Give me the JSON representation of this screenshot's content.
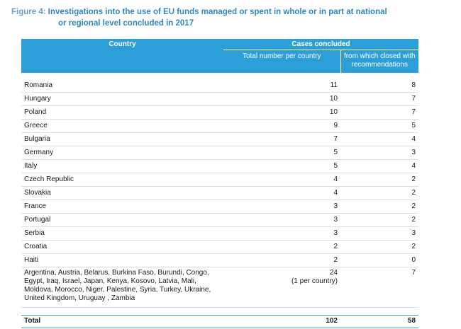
{
  "caption": {
    "label": "Figure 4:",
    "line1": "Investigations into the use of EU funds managed or spent in whole or in part at national",
    "line2": "or regional level concluded in 2017"
  },
  "table": {
    "headers": {
      "country": "Country",
      "cases_concluded": "Cases concluded",
      "total_per_country": "Total number per country",
      "closed_with_recommendations": "from which closed with recommendations"
    },
    "rows": [
      {
        "country": "Romania",
        "total": "11",
        "closed": "8"
      },
      {
        "country": "Hungary",
        "total": "10",
        "closed": "7"
      },
      {
        "country": "Poland",
        "total": "10",
        "closed": "7"
      },
      {
        "country": "Greece",
        "total": "9",
        "closed": "5"
      },
      {
        "country": "Bulgaria",
        "total": "7",
        "closed": "4"
      },
      {
        "country": "Germany",
        "total": "5",
        "closed": "3"
      },
      {
        "country": "Italy",
        "total": "5",
        "closed": "4"
      },
      {
        "country": "Czech Republic",
        "total": "4",
        "closed": "2"
      },
      {
        "country": "Slovakia",
        "total": "4",
        "closed": "2"
      },
      {
        "country": "France",
        "total": "3",
        "closed": "2"
      },
      {
        "country": "Portugal",
        "total": "3",
        "closed": "2"
      },
      {
        "country": "Serbia",
        "total": "3",
        "closed": "3"
      },
      {
        "country": "Croatia",
        "total": "2",
        "closed": "2"
      },
      {
        "country": "Haiti",
        "total": "2",
        "closed": "0"
      }
    ],
    "others": {
      "countries": "Argentina, Austria, Belarus, Burkina Faso, Burundi, Congo, Egypt, Iraq, Israel, Japan, Kenya, Kosovo, Latvia, Mali, Moldova, Morocco, Niger, Palestine, Syria, Turkey, Ukraine, United Kingdom, Uruguay , Zambia",
      "total": "24",
      "total_note": "(1 per country)",
      "closed": "7"
    },
    "total_row": {
      "label": "Total",
      "total": "102",
      "closed": "58"
    }
  },
  "colors": {
    "header_bg": "#2d9fd8",
    "caption_text": "#2f87bd",
    "row_divider": "#cfe3f0"
  }
}
